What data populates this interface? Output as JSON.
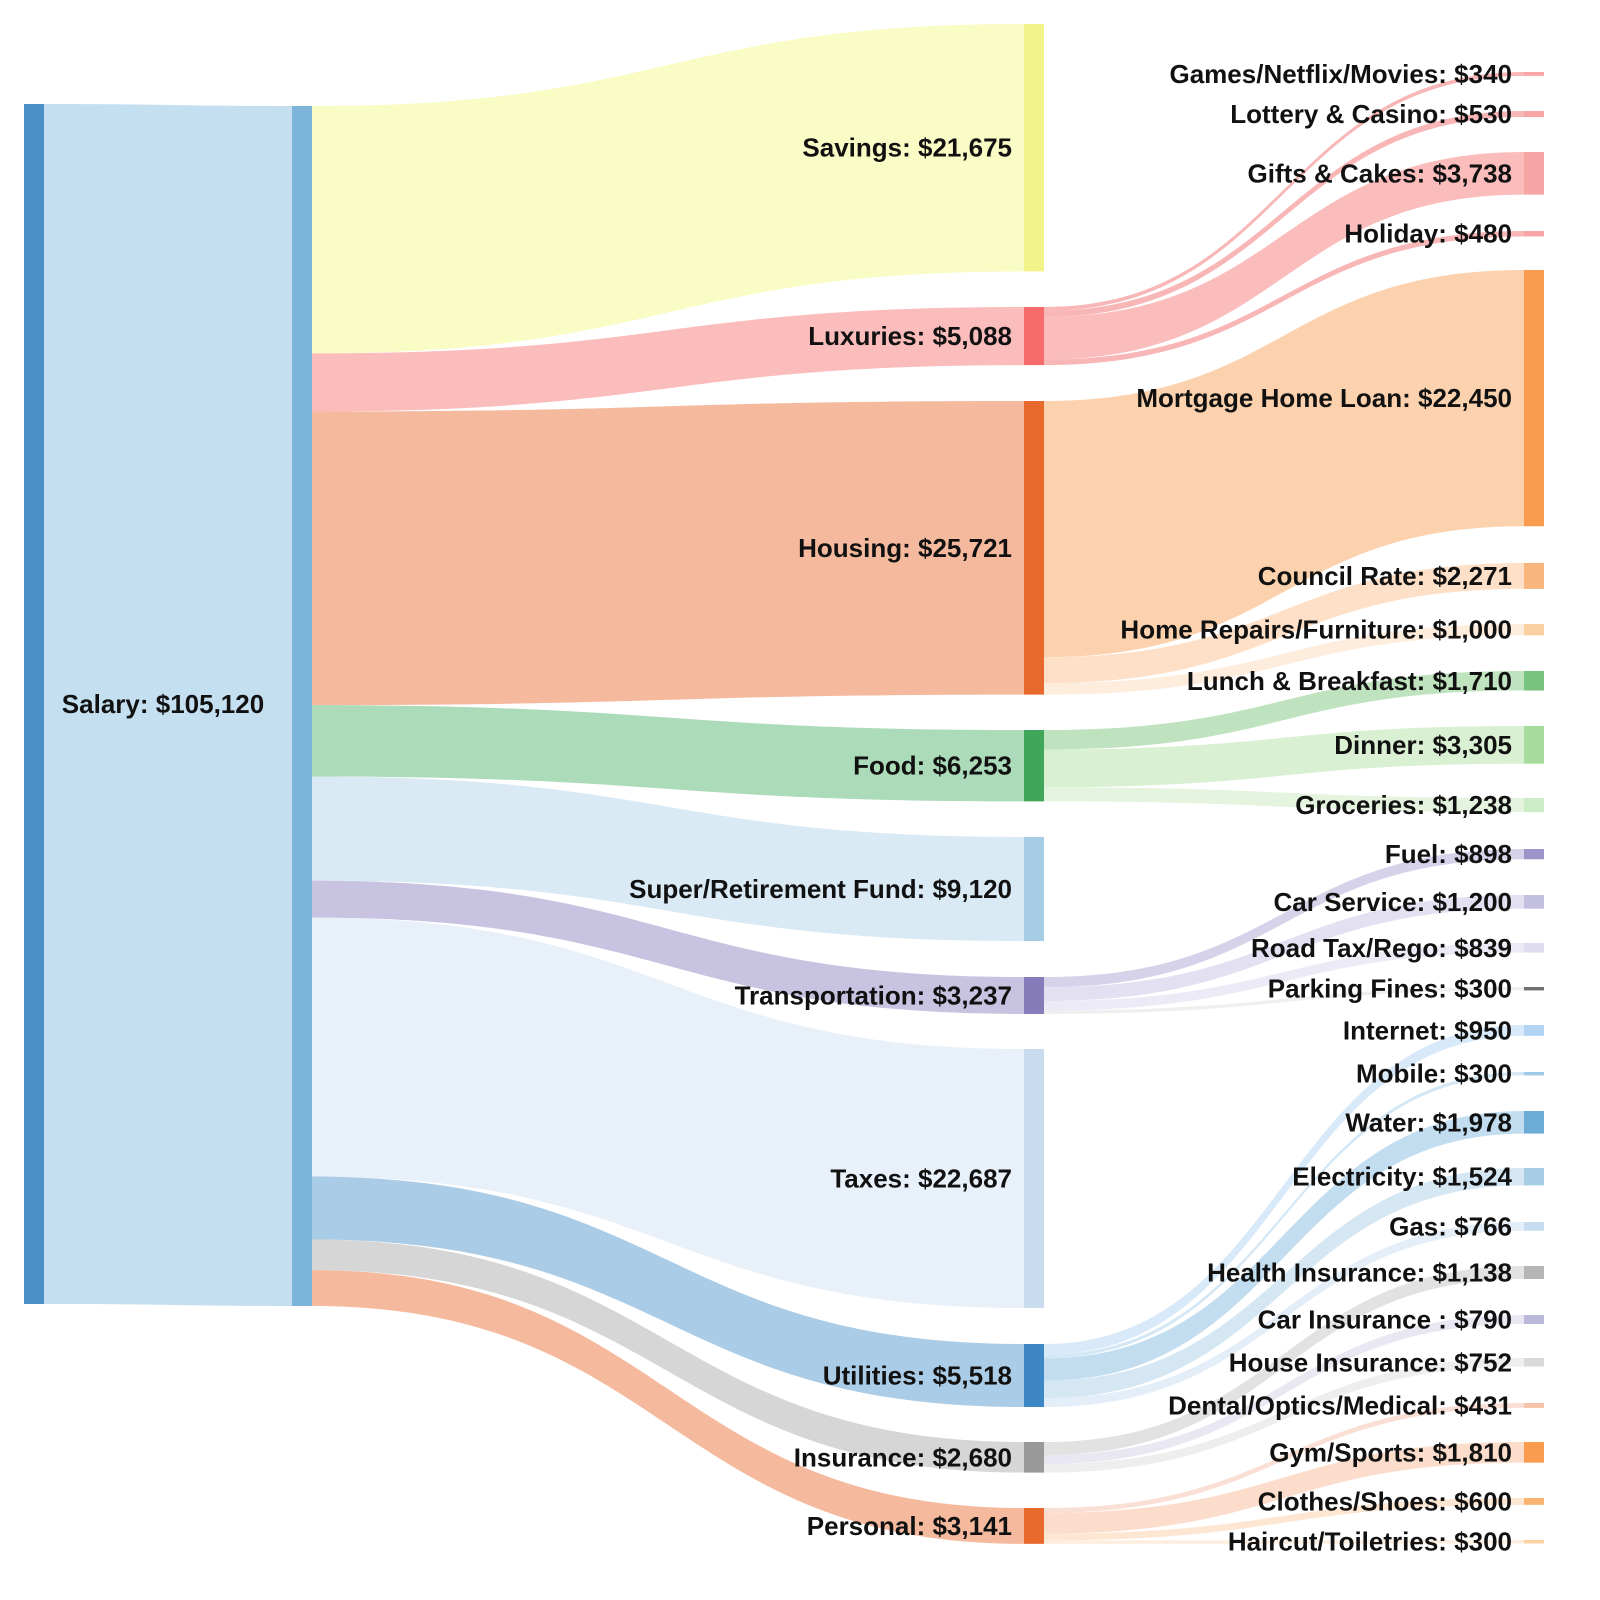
{
  "chart_data": {
    "type": "sankey",
    "title": "",
    "nodes": [
      {
        "id": "salary",
        "label": "Salary: $105,120",
        "value": 105120,
        "column": 0,
        "color": "#4a8fc5"
      },
      {
        "id": "salary_split",
        "label": "",
        "value": 105120,
        "column": 1,
        "color": "#7db5da"
      },
      {
        "id": "savings",
        "label": "Savings: $21,675",
        "value": 21675,
        "column": 2,
        "color": "#f3f38b"
      },
      {
        "id": "luxuries",
        "label": "Luxuries: $5,088",
        "value": 5088,
        "column": 2,
        "color": "#f86b6b"
      },
      {
        "id": "housing",
        "label": "Housing: $25,721",
        "value": 25721,
        "column": 2,
        "color": "#e8692c"
      },
      {
        "id": "food",
        "label": "Food: $6,253",
        "value": 6253,
        "column": 2,
        "color": "#3fa65a"
      },
      {
        "id": "super",
        "label": "Super/Retirement Fund: $9,120",
        "value": 9120,
        "column": 2,
        "color": "#a6cde3"
      },
      {
        "id": "transport",
        "label": "Transportation: $3,237",
        "value": 3237,
        "column": 2,
        "color": "#857cb9"
      },
      {
        "id": "taxes",
        "label": "Taxes: $22,687",
        "value": 22687,
        "column": 2,
        "color": "#c9dbee"
      },
      {
        "id": "utilities",
        "label": "Utilities: $5,518",
        "value": 5518,
        "column": 2,
        "color": "#3d87c4"
      },
      {
        "id": "insurance",
        "label": "Insurance: $2,680",
        "value": 2680,
        "column": 2,
        "color": "#999999"
      },
      {
        "id": "personal",
        "label": "Personal: $3,141",
        "value": 3141,
        "column": 2,
        "color": "#e8692c"
      },
      {
        "id": "games",
        "label": "Games/Netflix/Movies: $340",
        "value": 340,
        "column": 3,
        "color": "#f7a5a5"
      },
      {
        "id": "lottery",
        "label": "Lottery & Casino: $530",
        "value": 530,
        "column": 3,
        "color": "#f7a5a5"
      },
      {
        "id": "gifts",
        "label": "Gifts & Cakes: $3,738",
        "value": 3738,
        "column": 3,
        "color": "#f7a5a5"
      },
      {
        "id": "holiday",
        "label": "Holiday: $480",
        "value": 480,
        "column": 3,
        "color": "#f7a5a5"
      },
      {
        "id": "mortgage",
        "label": "Mortgage Home Loan: $22,450",
        "value": 22450,
        "column": 3,
        "color": "#f99c50"
      },
      {
        "id": "council",
        "label": "Council Rate: $2,271",
        "value": 2271,
        "column": 3,
        "color": "#f8b57c"
      },
      {
        "id": "repairs",
        "label": "Home Repairs/Furniture: $1,000",
        "value": 1000,
        "column": 3,
        "color": "#fbd1a4"
      },
      {
        "id": "lunch",
        "label": "Lunch & Breakfast: $1,710",
        "value": 1710,
        "column": 3,
        "color": "#78c47e"
      },
      {
        "id": "dinner",
        "label": "Dinner: $3,305",
        "value": 3305,
        "column": 3,
        "color": "#a8dc9c"
      },
      {
        "id": "groceries",
        "label": "Groceries: $1,238",
        "value": 1238,
        "column": 3,
        "color": "#cbecc4"
      },
      {
        "id": "fuel",
        "label": "Fuel: $898",
        "value": 898,
        "column": 3,
        "color": "#9c95c9"
      },
      {
        "id": "carservice",
        "label": "Car Service: $1,200",
        "value": 1200,
        "column": 3,
        "color": "#c4c0e0"
      },
      {
        "id": "roadtax",
        "label": "Road Tax/Rego: $839",
        "value": 839,
        "column": 3,
        "color": "#dedcee"
      },
      {
        "id": "parking",
        "label": "Parking Fines: $300",
        "value": 300,
        "column": 3,
        "color": "#707070"
      },
      {
        "id": "internet",
        "label": "Internet: $950",
        "value": 950,
        "column": 3,
        "color": "#b2d3f3"
      },
      {
        "id": "mobile",
        "label": "Mobile: $300",
        "value": 300,
        "column": 3,
        "color": "#9fcbe8"
      },
      {
        "id": "water",
        "label": "Water: $1,978",
        "value": 1978,
        "column": 3,
        "color": "#6cacd6"
      },
      {
        "id": "electricity",
        "label": "Electricity: $1,524",
        "value": 1524,
        "column": 3,
        "color": "#a6cde3"
      },
      {
        "id": "gas",
        "label": "Gas: $766",
        "value": 766,
        "column": 3,
        "color": "#c6dcf0"
      },
      {
        "id": "health",
        "label": "Health Insurance: $1,138",
        "value": 1138,
        "column": 3,
        "color": "#b5b5b5"
      },
      {
        "id": "carins",
        "label": "Car Insurance : $790",
        "value": 790,
        "column": 3,
        "color": "#bcbadb"
      },
      {
        "id": "houseins",
        "label": "House Insurance: $752",
        "value": 752,
        "column": 3,
        "color": "#d9d9d9"
      },
      {
        "id": "dental",
        "label": "Dental/Optics/Medical: $431",
        "value": 431,
        "column": 3,
        "color": "#f4c3aa"
      },
      {
        "id": "gym",
        "label": "Gym/Sports: $1,810",
        "value": 1810,
        "column": 3,
        "color": "#f99c50"
      },
      {
        "id": "clothes",
        "label": "Clothes/Shoes: $600",
        "value": 600,
        "column": 3,
        "color": "#f9b36e"
      },
      {
        "id": "haircut",
        "label": "Haircut/Toiletries: $300",
        "value": 300,
        "column": 3,
        "color": "#fbd19f"
      }
    ],
    "links": [
      {
        "source": "salary",
        "target": "salary_split",
        "value": 105120,
        "color": "#c4dff0"
      },
      {
        "source": "salary_split",
        "target": "savings",
        "value": 21675,
        "color": "#f9fcc4"
      },
      {
        "source": "salary_split",
        "target": "luxuries",
        "value": 5088,
        "color": "#fbbcbc"
      },
      {
        "source": "salary_split",
        "target": "housing",
        "value": 25721,
        "color": "#f5b99e"
      },
      {
        "source": "salary_split",
        "target": "food",
        "value": 6253,
        "color": "#acdbb9"
      },
      {
        "source": "salary_split",
        "target": "super",
        "value": 9120,
        "color": "#d9eaf4"
      },
      {
        "source": "salary_split",
        "target": "transport",
        "value": 3237,
        "color": "#c7c3e1"
      },
      {
        "source": "salary_split",
        "target": "taxes",
        "value": 22687,
        "color": "#e8f0fa"
      },
      {
        "source": "salary_split",
        "target": "utilities",
        "value": 5518,
        "color": "#abcce6"
      },
      {
        "source": "salary_split",
        "target": "insurance",
        "value": 2680,
        "color": "#d6d6d6"
      },
      {
        "source": "salary_split",
        "target": "personal",
        "value": 3141,
        "color": "#f5b99e"
      },
      {
        "source": "luxuries",
        "target": "games",
        "value": 340,
        "color": "#f8b6b6"
      },
      {
        "source": "luxuries",
        "target": "lottery",
        "value": 530,
        "color": "#f8b6b6"
      },
      {
        "source": "luxuries",
        "target": "gifts",
        "value": 3738,
        "color": "#fbbcbc"
      },
      {
        "source": "luxuries",
        "target": "holiday",
        "value": 480,
        "color": "#f8b6b6"
      },
      {
        "source": "housing",
        "target": "mortgage",
        "value": 22450,
        "color": "#fcd2ae"
      },
      {
        "source": "housing",
        "target": "council",
        "value": 2271,
        "color": "#fde0c7"
      },
      {
        "source": "housing",
        "target": "repairs",
        "value": 1000,
        "color": "#feecdd"
      },
      {
        "source": "food",
        "target": "lunch",
        "value": 1710,
        "color": "#bfe3bf"
      },
      {
        "source": "food",
        "target": "dinner",
        "value": 3305,
        "color": "#d9f0d2"
      },
      {
        "source": "food",
        "target": "groceries",
        "value": 1238,
        "color": "#e4f4df"
      },
      {
        "source": "transport",
        "target": "fuel",
        "value": 898,
        "color": "#d5d2ea"
      },
      {
        "source": "transport",
        "target": "carservice",
        "value": 1200,
        "color": "#e2e0f1"
      },
      {
        "source": "transport",
        "target": "roadtax",
        "value": 839,
        "color": "#eceaf6"
      },
      {
        "source": "transport",
        "target": "parking",
        "value": 300,
        "color": "#efefef"
      },
      {
        "source": "utilities",
        "target": "internet",
        "value": 950,
        "color": "#d8e9f9"
      },
      {
        "source": "utilities",
        "target": "mobile",
        "value": 300,
        "color": "#d3e7f4"
      },
      {
        "source": "utilities",
        "target": "water",
        "value": 1978,
        "color": "#c2ddf0"
      },
      {
        "source": "utilities",
        "target": "electricity",
        "value": 1524,
        "color": "#d4e7f3"
      },
      {
        "source": "utilities",
        "target": "gas",
        "value": 766,
        "color": "#e3eef8"
      },
      {
        "source": "insurance",
        "target": "health",
        "value": 1138,
        "color": "#e2e2e2"
      },
      {
        "source": "insurance",
        "target": "carins",
        "value": 790,
        "color": "#e8e7f2"
      },
      {
        "source": "insurance",
        "target": "houseins",
        "value": 752,
        "color": "#eeeeee"
      },
      {
        "source": "personal",
        "target": "dental",
        "value": 431,
        "color": "#fae0d4"
      },
      {
        "source": "personal",
        "target": "gym",
        "value": 1810,
        "color": "#fcdccb"
      },
      {
        "source": "personal",
        "target": "clothes",
        "value": 600,
        "color": "#fde6d2"
      },
      {
        "source": "personal",
        "target": "haircut",
        "value": 300,
        "color": "#feeedf"
      }
    ]
  }
}
